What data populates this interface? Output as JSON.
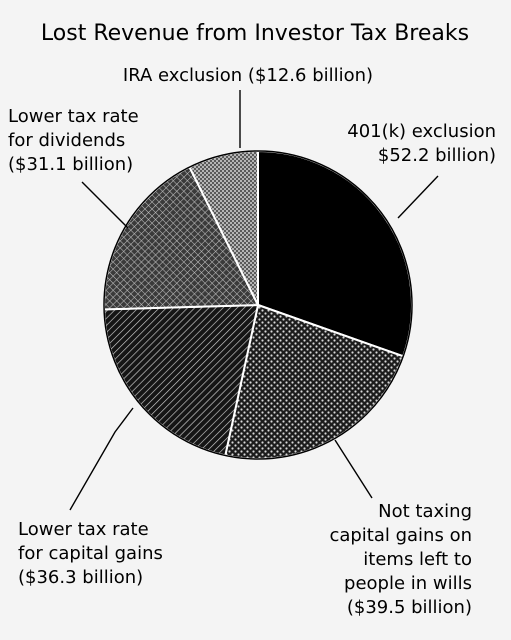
{
  "chart_data": {
    "type": "pie",
    "title": "Lost Revenue from Investor Tax Breaks",
    "slices": [
      {
        "lines": [
          "401(k) exclusion",
          "$52.2 billion)"
        ],
        "value": 52.2,
        "fill": "#000000",
        "pattern": "solid"
      },
      {
        "lines": [
          "Not taxing",
          "capital gains on",
          "items left to",
          "people in wills",
          "($39.5 billion)"
        ],
        "value": 39.5,
        "fill": "#222222",
        "pattern": "dots"
      },
      {
        "lines": [
          "Lower tax rate",
          "for capital gains",
          "($36.3 billion)"
        ],
        "value": 36.3,
        "fill": "#1a1a1a",
        "pattern": "diagonal"
      },
      {
        "lines": [
          "Lower tax rate",
          "for dividends",
          "($31.1 billion)"
        ],
        "value": 31.1,
        "fill": "#5e5e5e",
        "pattern": "crosshatch"
      },
      {
        "lines": [
          "IRA exclusion ($12.6 billion)"
        ],
        "value": 12.6,
        "fill": "#7a7a7a",
        "pattern": "checker"
      }
    ]
  }
}
